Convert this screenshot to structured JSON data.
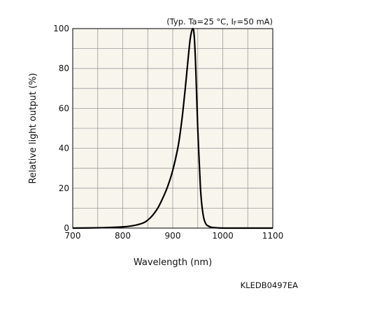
{
  "chart_data": {
    "type": "line",
    "title": "",
    "conditions": {
      "prefix": "(Typ. Ta=25 °C, I",
      "sub": "F",
      "suffix": "=50 mA)"
    },
    "xlabel": "Wavelength (nm)",
    "ylabel": "Relative light output (%)",
    "xlim": [
      700,
      1100
    ],
    "ylim": [
      0,
      100
    ],
    "xticks": [
      "700",
      "800",
      "900",
      "1000",
      "1100"
    ],
    "yticks": [
      "0",
      "20",
      "40",
      "60",
      "80",
      "100"
    ],
    "grid": true,
    "legend": "none",
    "colors": {
      "plot_bg": "#f7f5ec",
      "grid": "#9a9a9a",
      "line": "#000000"
    },
    "series": [
      {
        "x": [
          700,
          760,
          800,
          820,
          840,
          850,
          860,
          870,
          880,
          890,
          900,
          910,
          915,
          920,
          925,
          930,
          935,
          940,
          943,
          946,
          950,
          955,
          958,
          962,
          966,
          970,
          975,
          980,
          990,
          1000,
          1020,
          1050,
          1100
        ],
        "y": [
          0,
          0.2,
          0.6,
          1.2,
          2.5,
          4,
          6.5,
          10,
          15,
          21,
          29,
          40,
          48,
          58,
          70,
          83,
          95,
          100,
          96,
          80,
          50,
          22,
          12,
          5,
          2.2,
          1.2,
          0.6,
          0.3,
          0.1,
          0,
          0,
          0,
          0
        ]
      }
    ]
  },
  "figure_code": "KLEDB0497EA"
}
